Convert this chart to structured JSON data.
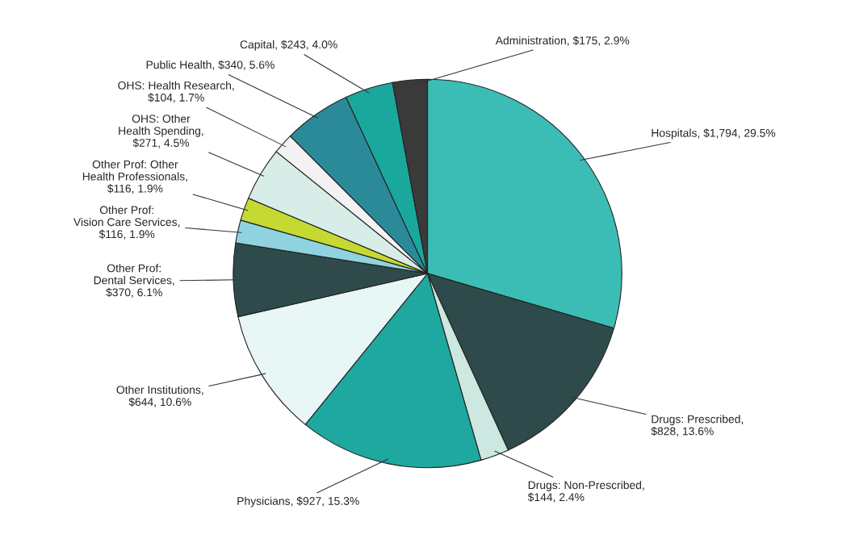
{
  "chart_data": {
    "type": "pie",
    "categories": [
      "Hospitals, $1,794, 29.5%",
      "Drugs: Prescribed,\n$828, 13.6%",
      "Drugs: Non-Prescribed,\n$144, 2.4%",
      "Physicians, $927, 15.3%",
      "Other Institutions,\n$644, 10.6%",
      "Other Prof:\nDental Services,\n$370, 6.1%",
      "Other Prof:\nVision Care Services,\n$116, 1.9%",
      "Other Prof: Other\nHealth Professionals,\n$116, 1.9%",
      "OHS: Other\nHealth Spending,\n$271, 4.5%",
      "OHS: Health Research,\n$104, 1.7%",
      "Public Health, $340, 5.6%",
      "Capital, $243, 4.0%",
      "Administration, $175, 2.9%"
    ],
    "values": [
      1794,
      828,
      144,
      927,
      644,
      370,
      116,
      116,
      271,
      104,
      340,
      243,
      175
    ],
    "colors": [
      "#3bbdb5",
      "#2e4a4a",
      "#cce8e0",
      "#1fa8a0",
      "#e8f6f5",
      "#2f4a4a",
      "#8fd3e0",
      "#c5d933",
      "#d8ece8",
      "#f2f2f2",
      "#2b8a9a",
      "#1aa89c",
      "#3a3a3a"
    ]
  }
}
